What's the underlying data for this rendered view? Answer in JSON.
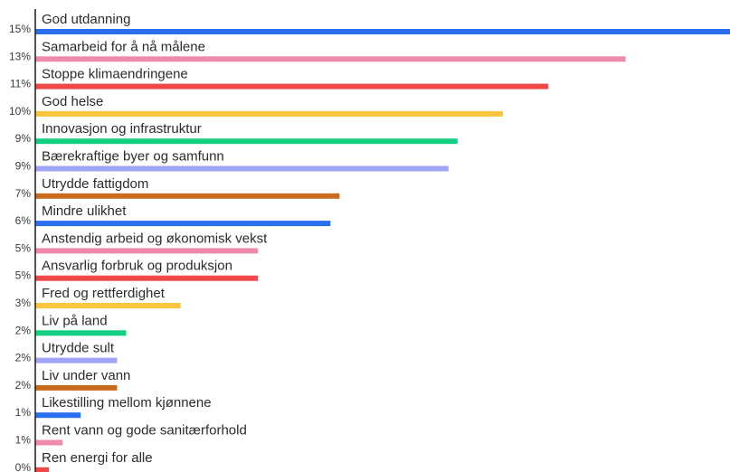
{
  "chart_data": {
    "type": "bar",
    "orientation": "horizontal",
    "title": "",
    "xlabel": "",
    "ylabel": "",
    "grid": false,
    "legend": "none",
    "categories": [
      "God utdanning",
      "Samarbeid for å nå målene",
      "Stoppe klimaendringene",
      "God helse",
      "Innovasjon og infrastruktur",
      "Bærekraftige byer og samfunn",
      "Utrydde fattigdom",
      "Mindre ulikhet",
      "Anstendig arbeid og økonomisk vekst",
      "Ansvarlig forbruk og produksjon",
      "Fred og rettferdighet",
      "Liv på land",
      "Utrydde sult",
      "Liv under vann",
      "Likestilling mellom kjønnene",
      "Rent vann og gode sanitærforhold",
      "Ren energi for alle"
    ],
    "values": [
      15.3,
      13.0,
      11.3,
      10.3,
      9.3,
      9.1,
      6.7,
      6.5,
      4.9,
      4.9,
      3.2,
      2.0,
      1.8,
      1.8,
      1.0,
      0.6,
      0.3
    ],
    "value_labels": [
      "15%",
      "13%",
      "11%",
      "10%",
      "9%",
      "9%",
      "7%",
      "6%",
      "5%",
      "5%",
      "3%",
      "2%",
      "2%",
      "2%",
      "1%",
      "1%",
      "0%"
    ],
    "colors": [
      "#2a6ff0",
      "#f08aab",
      "#f04848",
      "#fbc63d",
      "#12cf82",
      "#a0a4f5",
      "#c86b1c",
      "#2a6ff0",
      "#f08aab",
      "#f04848",
      "#fbc63d",
      "#12cf82",
      "#a0a4f5",
      "#c86b1c",
      "#2a6ff0",
      "#f08aab",
      "#f04848"
    ],
    "xlim": [
      0,
      15.3
    ]
  }
}
